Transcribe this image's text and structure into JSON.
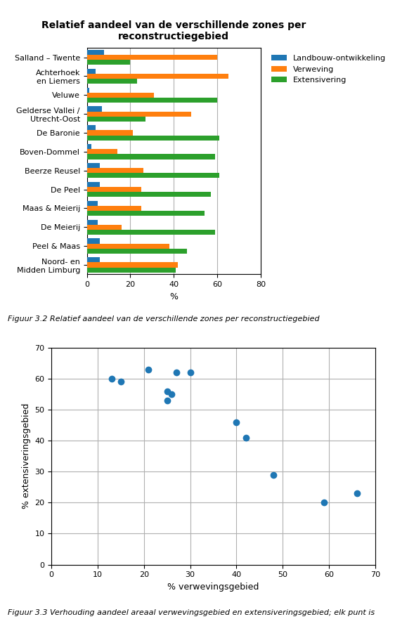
{
  "chart_data": [
    {
      "type": "bar",
      "orientation": "horizontal",
      "title": "Relatief aandeel van de verschillende zones per reconstructiegebied",
      "caption": "Figuur 3.2 Relatief aandeel van de verschillende zones per reconstructiegebied",
      "categories": [
        "Salland – Twente",
        "Achterhoek\nen Liemers",
        "Veluwe",
        "Gelderse Vallei /\nUtrecht-Oost",
        "De Baronie",
        "Boven-Dommel",
        "Beerze Reusel",
        "De Peel",
        "Maas & Meierij",
        "De Meierij",
        "Peel & Maas",
        "Noord- en\nMidden Limburg"
      ],
      "series": [
        {
          "name": "Landbouw-ontwikkeling",
          "values": [
            8,
            4,
            1,
            7,
            4,
            2,
            6,
            6,
            5,
            5,
            6,
            6
          ]
        },
        {
          "name": "Verweving",
          "values": [
            60,
            65,
            31,
            48,
            21,
            14,
            26,
            25,
            25,
            16,
            38,
            42
          ]
        },
        {
          "name": "Extensivering",
          "values": [
            20,
            23,
            60,
            27,
            61,
            59,
            61,
            57,
            54,
            59,
            46,
            41
          ]
        }
      ],
      "xlabel": "%",
      "xlim": [
        0,
        80
      ],
      "xticks": [
        0,
        20,
        40,
        60,
        80
      ],
      "grid": true,
      "legend": "upper left"
    },
    {
      "type": "scatter",
      "caption": "Figuur 3.3 Verhouding aandeel areaal verwevingsgebied en extensiveringsgebied; elk punt is",
      "x": [
        13,
        15,
        21,
        25,
        25,
        26,
        27,
        30,
        40,
        42,
        48,
        59,
        66
      ],
      "values": [
        60,
        59,
        63,
        53,
        56,
        55,
        62,
        62,
        46,
        41,
        29,
        20,
        23
      ],
      "xlabel": "% verwevingsgebied",
      "ylabel": "% extensiveringsgebied",
      "xlim": [
        0,
        70
      ],
      "ylim": [
        0,
        70
      ],
      "xticks": [
        0,
        10,
        20,
        30,
        40,
        50,
        60,
        70
      ],
      "yticks": [
        0,
        10,
        20,
        30,
        40,
        50,
        60,
        70
      ],
      "grid": true
    }
  ]
}
